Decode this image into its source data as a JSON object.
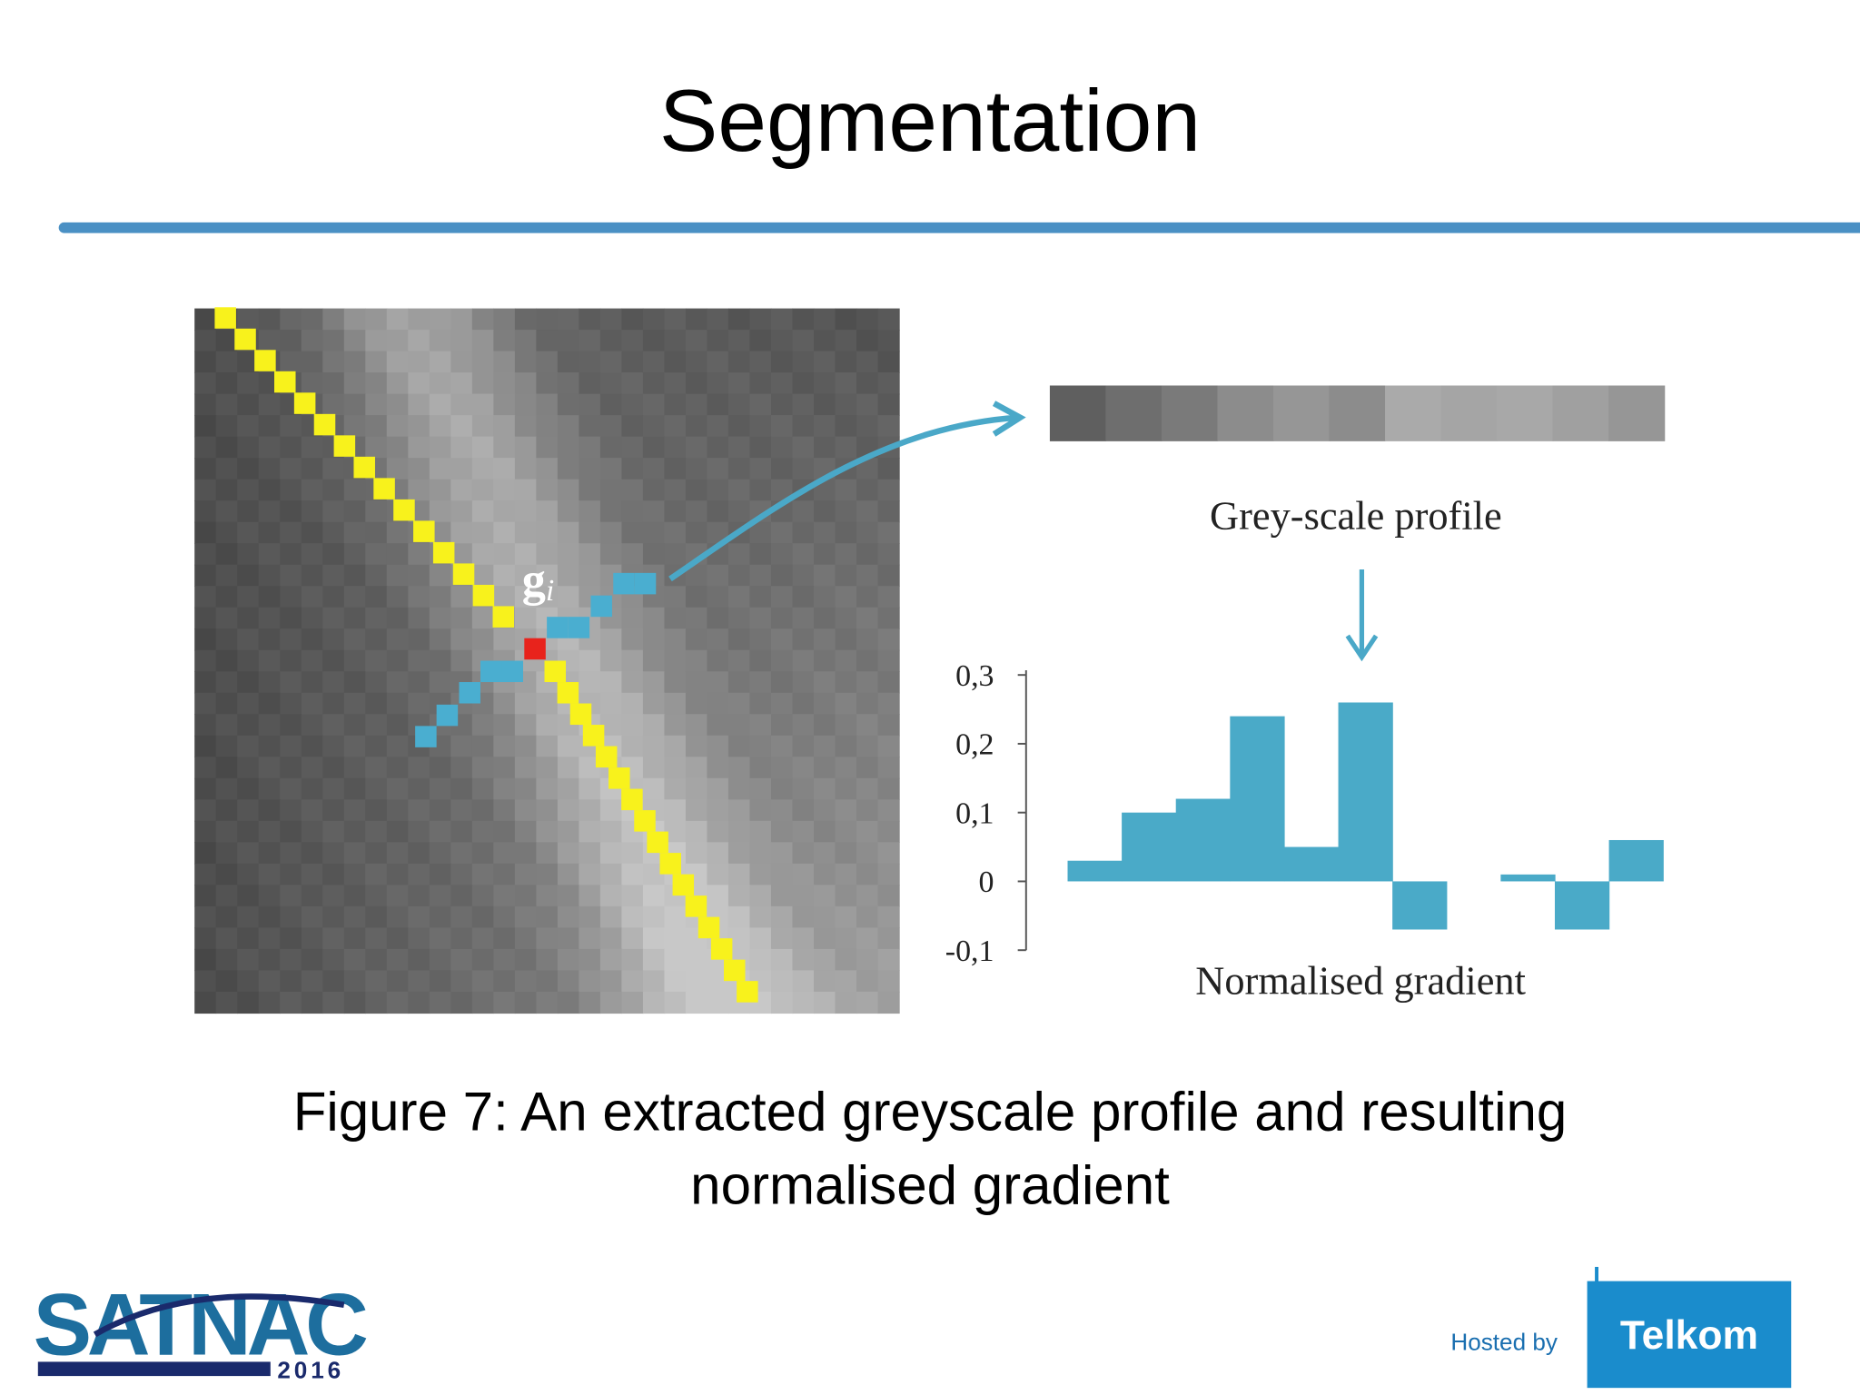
{
  "title": "Segmentation",
  "figure": {
    "g_label": "g",
    "g_sub": "i",
    "profile_label": "Grey-scale profile",
    "caption": [
      "Figure 7: An extracted greyscale profile and resulting",
      "normalised gradient"
    ]
  },
  "chart_data": {
    "type": "bar",
    "xlabel": "Normalised gradient",
    "values": [
      0.03,
      0.1,
      0.12,
      0.24,
      0.05,
      0.26,
      -0.07,
      0,
      0.01,
      -0.07,
      0.06
    ],
    "color": "#4aaac8",
    "ylim": [
      -0.1,
      0.3
    ],
    "yticks": [
      {
        "value": -0.1,
        "label": "-0,1"
      },
      0,
      {
        "value": 0.1,
        "label": "0,1"
      },
      {
        "value": 0.2,
        "label": "0,2"
      },
      {
        "value": 0.3,
        "label": "0,3"
      }
    ]
  },
  "logo": {
    "name": "SATNAC",
    "year": "2016"
  },
  "host": {
    "prefix": "Hosted by",
    "name": "Telkom"
  }
}
